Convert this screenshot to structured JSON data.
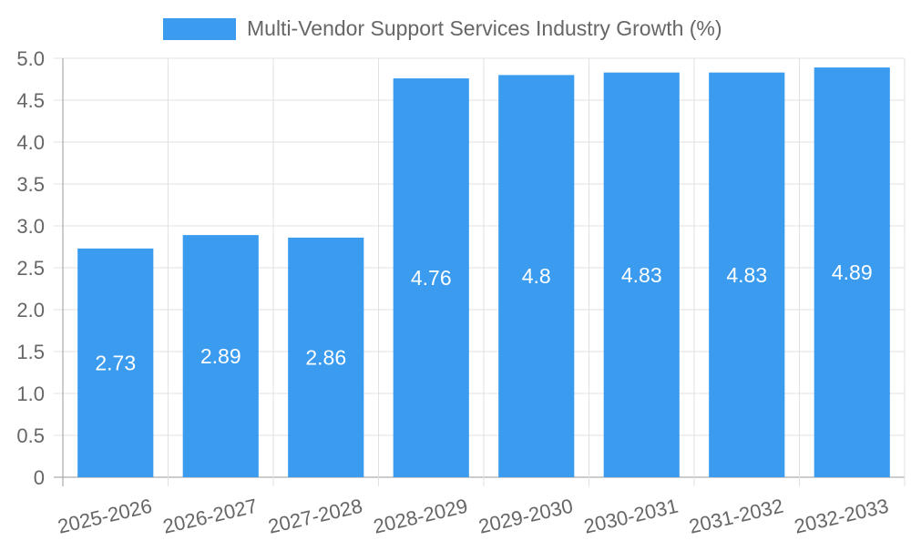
{
  "legend": {
    "label": "Multi-Vendor Support Services Industry Growth (%)",
    "swatch_color": "#3a9bef"
  },
  "chart_data": {
    "type": "bar",
    "categories": [
      "2025-2026",
      "2026-2027",
      "2027-2028",
      "2028-2029",
      "2029-2030",
      "2030-2031",
      "2031-2032",
      "2032-2033"
    ],
    "series": [
      {
        "name": "Multi-Vendor Support Services Industry Growth (%)",
        "values": [
          2.73,
          2.89,
          2.86,
          4.76,
          4.8,
          4.83,
          4.83,
          4.89
        ],
        "data_labels": [
          "2.73",
          "2.89",
          "2.86",
          "4.76",
          "4.8",
          "4.83",
          "4.83",
          "4.89"
        ],
        "color": "#3a9bef"
      }
    ],
    "ylim": [
      0,
      5
    ],
    "yticks": [
      "0",
      "0.5",
      "1.0",
      "1.5",
      "2.0",
      "2.5",
      "3.0",
      "3.5",
      "4.0",
      "4.5",
      "5.0"
    ],
    "xlabel": "",
    "ylabel": "",
    "grid": true,
    "legend_position": "top-center"
  }
}
